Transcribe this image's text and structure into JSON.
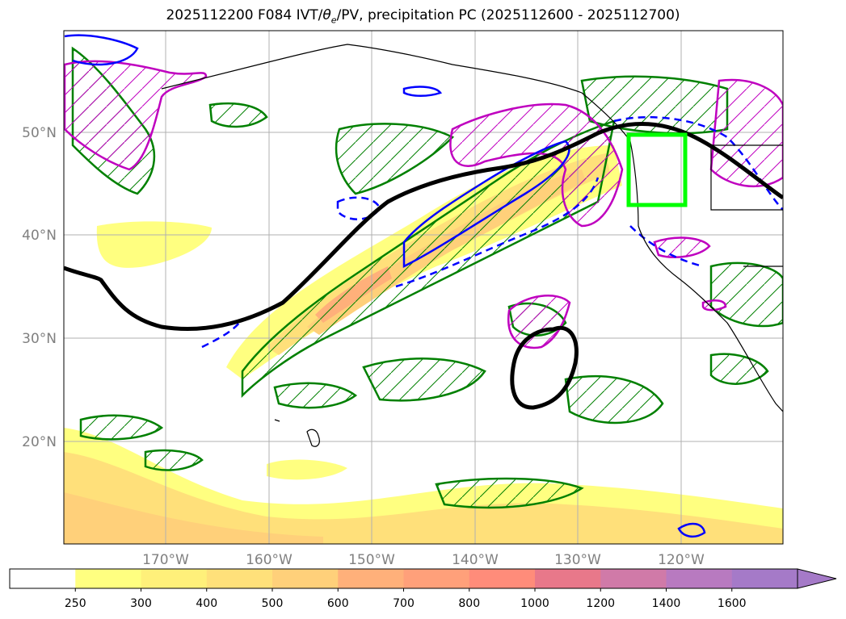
{
  "title": {
    "prefix": "2025112200 F084 IVT/",
    "theta": "θ",
    "theta_sub": "e",
    "suffix": "/PV, precipitation PC (2025112600 - 2025112700)"
  },
  "map": {
    "lat_labels": [
      "50°N",
      "40°N",
      "30°N",
      "20°N"
    ],
    "lon_labels": [
      "170°W",
      "160°W",
      "150°W",
      "140°W",
      "130°W",
      "120°W"
    ],
    "colors": {
      "coastline": "#000000",
      "theta_e_contour": "#000000",
      "precip_hatch": "#008000",
      "pv_contour": "#0000ff",
      "magenta_contour": "#bf00bf",
      "box": "#00ff00",
      "grid": "#b0b0b0"
    }
  },
  "colorbar": {
    "ticks": [
      "250",
      "300",
      "400",
      "500",
      "600",
      "700",
      "800",
      "1000",
      "1200",
      "1400",
      "1600"
    ],
    "colors": [
      "#ffff80",
      "#fff07a",
      "#ffe07a",
      "#ffd07a",
      "#ffb07a",
      "#ffa07a",
      "#ff8c7a",
      "#e8788a",
      "#d07aa8",
      "#b87ac0",
      "#a57ac8"
    ],
    "extend": "max"
  }
}
